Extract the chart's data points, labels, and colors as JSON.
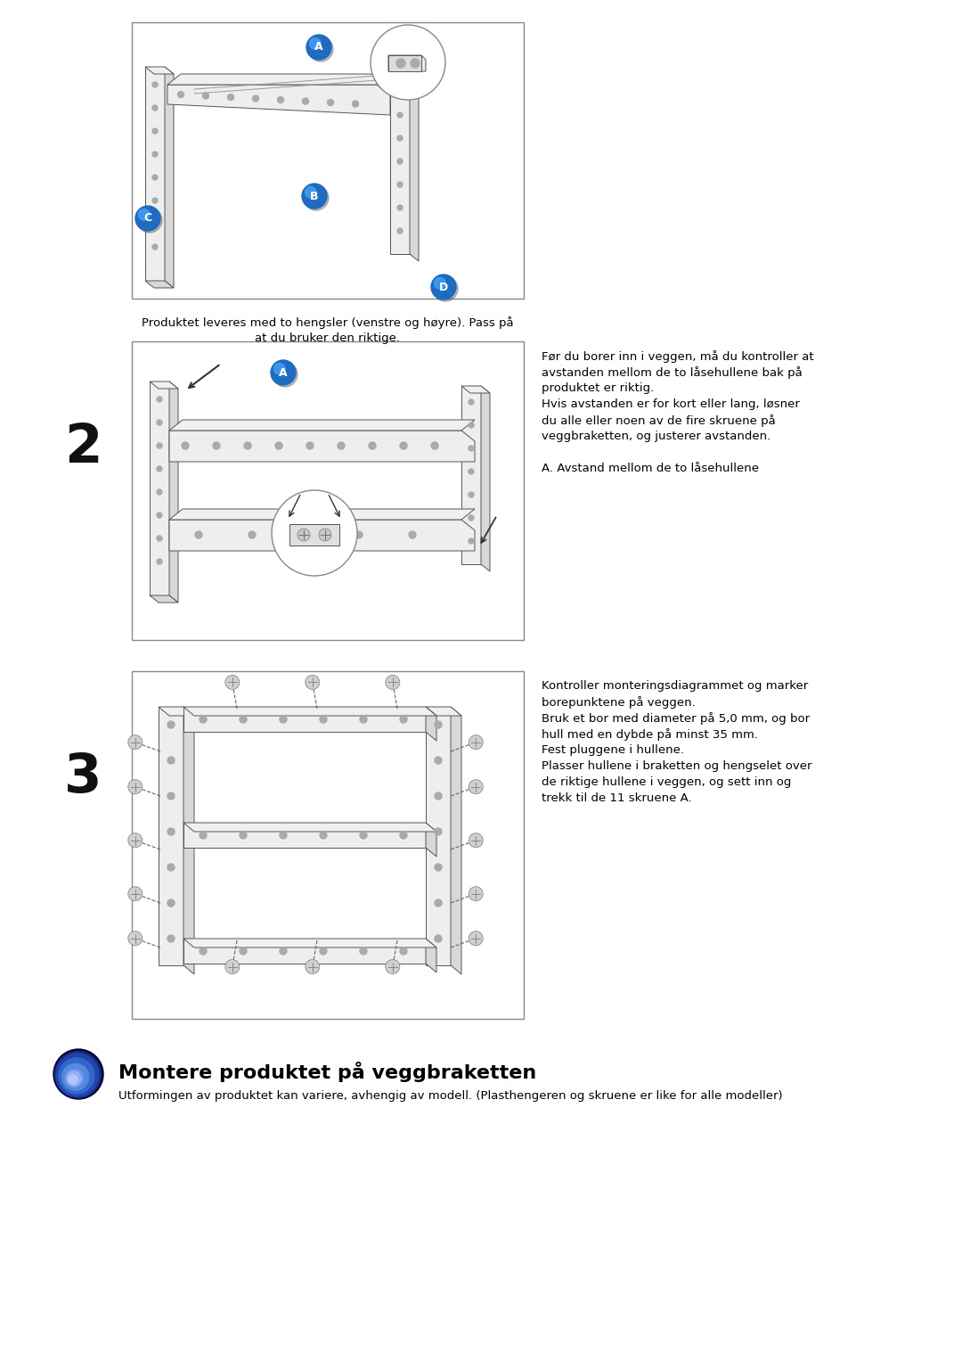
{
  "bg_color": "#ffffff",
  "title": "Montere produktet på veggbraketten",
  "subtitle": "Utformingen av produktet kan variere, avhengig av modell. (Plasthengeren og skruene er like for alle modeller)",
  "caption1_line1": "Produktet leveres med to hengsler (venstre og høyre). Pass på",
  "caption1_line2": "at du bruker den riktige.",
  "step2_text_lines": [
    "Før du borer inn i veggen, må du kontroller at",
    "avstanden mellom de to låsehullene bak på",
    "produktet er riktig.",
    "Hvis avstanden er for kort eller lang, løsner",
    "du alle eller noen av de fire skruene på",
    "veggbraketten, og justerer avstanden.",
    "",
    "A. Avstand mellom de to låsehullene"
  ],
  "step3_text_lines": [
    "Kontroller monteringsdiagrammet og marker",
    "borepunktene på veggen.",
    "Bruk et bor med diameter på 5,0 mm, og bor",
    "hull med en dybde på minst 35 mm.",
    "Fest pluggene i hullene.",
    "Plasser hullene i braketten og hengselet over",
    "de riktige hullene i veggen, og sett inn og",
    "trekk til de 11 skruene A."
  ],
  "step2_num": "2",
  "step3_num": "3",
  "box_border": "#888888",
  "line_color": "#555555",
  "light_fill": "#eeeeee",
  "mid_fill": "#d8d8d8",
  "blue1": "#1e6bbf",
  "blue2": "#4da6ff",
  "blue_dark": "#0a3d8f"
}
